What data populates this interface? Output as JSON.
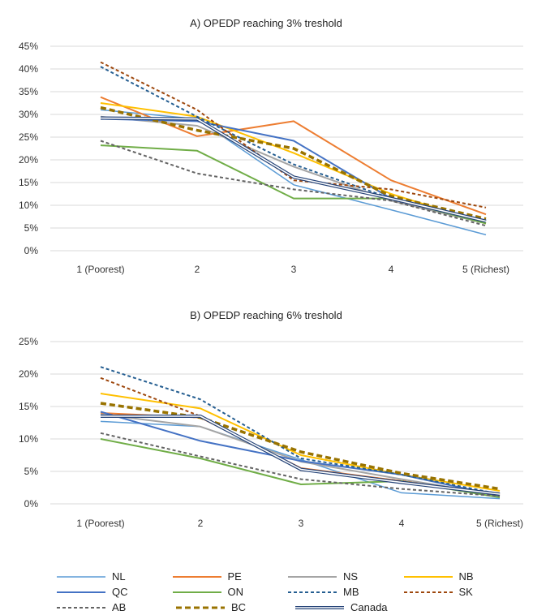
{
  "categories": [
    "1 (Poorest)",
    "2",
    "3",
    "4",
    "5 (Richest)"
  ],
  "series_styles": [
    {
      "name": "NL",
      "color": "#5b9bd5",
      "width": 1.5,
      "dash": "",
      "double": false
    },
    {
      "name": "PE",
      "color": "#ed7d31",
      "width": 2,
      "dash": "",
      "double": false
    },
    {
      "name": "NS",
      "color": "#a5a5a5",
      "width": 2,
      "dash": "",
      "double": false
    },
    {
      "name": "NB",
      "color": "#ffc000",
      "width": 2,
      "dash": "",
      "double": false
    },
    {
      "name": "QC",
      "color": "#4472c4",
      "width": 2,
      "dash": "",
      "double": false
    },
    {
      "name": "ON",
      "color": "#70ad47",
      "width": 2,
      "dash": "",
      "double": false
    },
    {
      "name": "MB",
      "color": "#255e91",
      "width": 2,
      "dash": "4,3",
      "double": false
    },
    {
      "name": "SK",
      "color": "#9e480e",
      "width": 2,
      "dash": "4,3",
      "double": false
    },
    {
      "name": "AB",
      "color": "#636363",
      "width": 2,
      "dash": "4,3",
      "double": false
    },
    {
      "name": "BC",
      "color": "#997300",
      "width": 3.5,
      "dash": "7,4",
      "double": false
    },
    {
      "name": "Canada",
      "color": "#264478",
      "width": 1.3,
      "dash": "",
      "double": true
    }
  ],
  "chart_data": [
    {
      "type": "line",
      "title": "A) OPEDP reaching 3% treshold",
      "categories": [
        "1 (Poorest)",
        "2",
        "3",
        "4",
        "5 (Richest)"
      ],
      "ylim": [
        0,
        45
      ],
      "yticks": [
        "0%",
        "5%",
        "10%",
        "15%",
        "20%",
        "25%",
        "30%",
        "35%",
        "40%",
        "45%"
      ],
      "grid": true,
      "series": [
        {
          "name": "NL",
          "values": [
            31,
            29,
            14.5,
            9,
            3.5
          ]
        },
        {
          "name": "PE",
          "values": [
            33.8,
            25.2,
            28.5,
            15.5,
            8
          ]
        },
        {
          "name": "NS",
          "values": [
            29.5,
            27.5,
            18.5,
            11,
            6
          ]
        },
        {
          "name": "NB",
          "values": [
            32.5,
            29.5,
            21.5,
            12.5,
            6
          ]
        },
        {
          "name": "QC",
          "values": [
            29,
            28.5,
            24.2,
            11.5,
            6.5
          ]
        },
        {
          "name": "ON",
          "values": [
            23.2,
            22,
            11.5,
            11.5,
            6
          ]
        },
        {
          "name": "MB",
          "values": [
            40.5,
            29.5,
            19,
            11.5,
            6.5
          ]
        },
        {
          "name": "SK",
          "values": [
            41.5,
            31,
            15.5,
            13.5,
            9.5
          ]
        },
        {
          "name": "AB",
          "values": [
            24.2,
            17,
            13.5,
            11,
            5.5
          ]
        },
        {
          "name": "BC",
          "values": [
            31.5,
            26.5,
            22.5,
            12,
            7
          ]
        },
        {
          "name": "Canada",
          "values": [
            29.2,
            29,
            16.2,
            11.5,
            6.5
          ]
        }
      ]
    },
    {
      "type": "line",
      "title": "B) OPEDP reaching 6% treshold",
      "categories": [
        "1 (Poorest)",
        "2",
        "3",
        "4",
        "5 (Richest)"
      ],
      "ylim": [
        0,
        25
      ],
      "yticks": [
        "0%",
        "5%",
        "10%",
        "15%",
        "20%",
        "25%"
      ],
      "grid": true,
      "series": [
        {
          "name": "NL",
          "values": [
            12.7,
            11.9,
            6.8,
            1.7,
            0.8
          ]
        },
        {
          "name": "PE",
          "values": [
            14,
            13.3,
            5.5,
            3.5,
            1.5
          ]
        },
        {
          "name": "NS",
          "values": [
            13.8,
            11.9,
            6.5,
            3.8,
            1.3
          ]
        },
        {
          "name": "NB",
          "values": [
            17,
            14.7,
            7.5,
            4.5,
            2
          ]
        },
        {
          "name": "QC",
          "values": [
            14.2,
            9.7,
            6.6,
            4.5,
            1.2
          ]
        },
        {
          "name": "ON",
          "values": [
            10,
            7,
            3,
            3.5,
            1
          ]
        },
        {
          "name": "MB",
          "values": [
            21.1,
            16.1,
            7,
            4.5,
            1.5
          ]
        },
        {
          "name": "SK",
          "values": [
            19.4,
            13.5,
            5.2,
            3.5,
            1.3
          ]
        },
        {
          "name": "AB",
          "values": [
            10.9,
            7.3,
            3.8,
            2.3,
            1.2
          ]
        },
        {
          "name": "BC",
          "values": [
            15.5,
            13.3,
            8,
            4.7,
            2.3
          ]
        },
        {
          "name": "Canada",
          "values": [
            13.5,
            13.5,
            5.3,
            3.3,
            1.5
          ]
        }
      ]
    }
  ]
}
